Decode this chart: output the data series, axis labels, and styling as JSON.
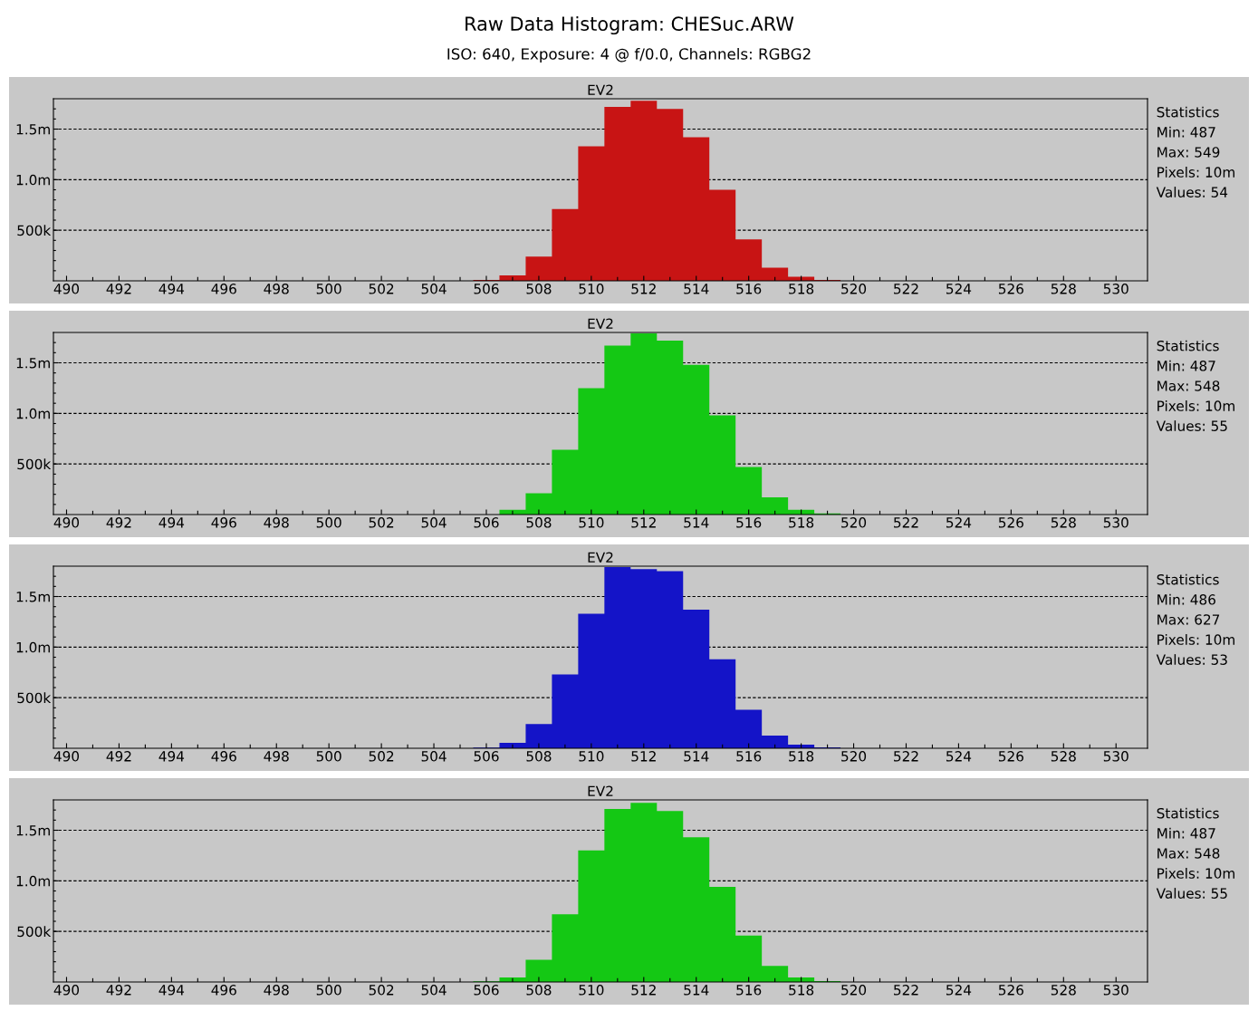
{
  "chart_data": [
    {
      "type": "other",
      "title": "Raw Data Histogram: CHESuc.ARW",
      "subtitle": "ISO: 640, Exposure: 4 @ f/0.0, Channels: RGBG2"
    },
    {
      "type": "histogram",
      "title": "EV2",
      "color": "#c81414",
      "bins": [
        505.5,
        506.5,
        507.5,
        508.5,
        509.5,
        510.5,
        511.5,
        512.5,
        513.5,
        514.5,
        515.5,
        516.5,
        517.5,
        518.5,
        519.5
      ],
      "values": [
        10000,
        54000,
        240000,
        710000,
        1330000,
        1720000,
        1780000,
        1700000,
        1420000,
        900000,
        410000,
        130000,
        40000,
        10000
      ],
      "xlim": [
        489.5,
        531.2
      ],
      "ylim": [
        0,
        1800000
      ],
      "xticks": [
        490,
        {
          "value": 491,
          "label": null
        },
        492,
        {
          "value": 493,
          "label": null
        },
        494,
        {
          "value": 495,
          "label": null
        },
        496,
        {
          "value": 497,
          "label": null
        },
        498,
        {
          "value": 499,
          "label": null
        },
        500,
        {
          "value": 501,
          "label": null
        },
        502,
        {
          "value": 503,
          "label": null
        },
        504,
        {
          "value": 505,
          "label": null
        },
        506,
        {
          "value": 507,
          "label": null
        },
        508,
        {
          "value": 509,
          "label": null
        },
        510,
        {
          "value": 511,
          "label": null
        },
        512,
        {
          "value": 513,
          "label": null
        },
        514,
        {
          "value": 515,
          "label": null
        },
        516,
        {
          "value": 517,
          "label": null
        },
        518,
        {
          "value": 519,
          "label": null
        },
        520,
        {
          "value": 521,
          "label": null
        },
        522,
        {
          "value": 523,
          "label": null
        },
        524,
        {
          "value": 525,
          "label": null
        },
        526,
        {
          "value": 527,
          "label": null
        },
        528,
        {
          "value": 529,
          "label": null
        },
        530
      ],
      "yticks": [
        {
          "value": 100000,
          "label": null
        },
        {
          "value": 200000,
          "label": null
        },
        {
          "value": 300000,
          "label": null
        },
        {
          "value": 400000,
          "label": null
        },
        {
          "value": 500000,
          "label": "500k"
        },
        {
          "value": 600000,
          "label": null
        },
        {
          "value": 700000,
          "label": null
        },
        {
          "value": 800000,
          "label": null
        },
        {
          "value": 900000,
          "label": null
        },
        {
          "value": 1000000,
          "label": "1.0m"
        },
        {
          "value": 1100000,
          "label": null
        },
        {
          "value": 1200000,
          "label": null
        },
        {
          "value": 1300000,
          "label": null
        },
        {
          "value": 1400000,
          "label": null
        },
        {
          "value": 1500000,
          "label": "1.5m"
        },
        {
          "value": 1600000,
          "label": null
        },
        {
          "value": 1700000,
          "label": null
        }
      ],
      "grid": "y",
      "line_style": "dashed",
      "annotations": [
        "Statistics",
        "Min: 487",
        "Max: 549",
        "Pixels: 10m",
        "Values: 54"
      ]
    },
    {
      "type": "histogram",
      "title": "EV2",
      "color": "#14c814",
      "bins": [
        506.5,
        507.5,
        508.5,
        509.5,
        510.5,
        511.5,
        512.5,
        513.5,
        514.5,
        515.5,
        516.5,
        517.5,
        518.5,
        519.5
      ],
      "values": [
        48000,
        210000,
        640000,
        1250000,
        1670000,
        1790000,
        1720000,
        1480000,
        980000,
        470000,
        170000,
        48000,
        12000
      ],
      "xlim": [
        489.5,
        531.2
      ],
      "ylim": [
        0,
        1800000
      ],
      "xticks": [
        490,
        {
          "value": 491,
          "label": null
        },
        492,
        {
          "value": 493,
          "label": null
        },
        494,
        {
          "value": 495,
          "label": null
        },
        496,
        {
          "value": 497,
          "label": null
        },
        498,
        {
          "value": 499,
          "label": null
        },
        500,
        {
          "value": 501,
          "label": null
        },
        502,
        {
          "value": 503,
          "label": null
        },
        504,
        {
          "value": 505,
          "label": null
        },
        506,
        {
          "value": 507,
          "label": null
        },
        508,
        {
          "value": 509,
          "label": null
        },
        510,
        {
          "value": 511,
          "label": null
        },
        512,
        {
          "value": 513,
          "label": null
        },
        514,
        {
          "value": 515,
          "label": null
        },
        516,
        {
          "value": 517,
          "label": null
        },
        518,
        {
          "value": 519,
          "label": null
        },
        520,
        {
          "value": 521,
          "label": null
        },
        522,
        {
          "value": 523,
          "label": null
        },
        524,
        {
          "value": 525,
          "label": null
        },
        526,
        {
          "value": 527,
          "label": null
        },
        528,
        {
          "value": 529,
          "label": null
        },
        530
      ],
      "yticks": [
        {
          "value": 100000,
          "label": null
        },
        {
          "value": 200000,
          "label": null
        },
        {
          "value": 300000,
          "label": null
        },
        {
          "value": 400000,
          "label": null
        },
        {
          "value": 500000,
          "label": "500k"
        },
        {
          "value": 600000,
          "label": null
        },
        {
          "value": 700000,
          "label": null
        },
        {
          "value": 800000,
          "label": null
        },
        {
          "value": 900000,
          "label": null
        },
        {
          "value": 1000000,
          "label": "1.0m"
        },
        {
          "value": 1100000,
          "label": null
        },
        {
          "value": 1200000,
          "label": null
        },
        {
          "value": 1300000,
          "label": null
        },
        {
          "value": 1400000,
          "label": null
        },
        {
          "value": 1500000,
          "label": "1.5m"
        },
        {
          "value": 1600000,
          "label": null
        },
        {
          "value": 1700000,
          "label": null
        }
      ],
      "grid": "y",
      "line_style": "dashed",
      "annotations": [
        "Statistics",
        "Min: 487",
        "Max: 548",
        "Pixels: 10m",
        "Values: 55"
      ]
    },
    {
      "type": "histogram",
      "title": "EV2",
      "color": "#1414c8",
      "bins": [
        505.5,
        506.5,
        507.5,
        508.5,
        509.5,
        510.5,
        511.5,
        512.5,
        513.5,
        514.5,
        515.5,
        516.5,
        517.5,
        518.5,
        519.5
      ],
      "values": [
        6000,
        54000,
        240000,
        730000,
        1330000,
        1790000,
        1770000,
        1750000,
        1370000,
        880000,
        380000,
        125000,
        36000,
        9000
      ],
      "xlim": [
        489.5,
        531.2
      ],
      "ylim": [
        0,
        1800000
      ],
      "xticks": [
        490,
        {
          "value": 491,
          "label": null
        },
        492,
        {
          "value": 493,
          "label": null
        },
        494,
        {
          "value": 495,
          "label": null
        },
        496,
        {
          "value": 497,
          "label": null
        },
        498,
        {
          "value": 499,
          "label": null
        },
        500,
        {
          "value": 501,
          "label": null
        },
        502,
        {
          "value": 503,
          "label": null
        },
        504,
        {
          "value": 505,
          "label": null
        },
        506,
        {
          "value": 507,
          "label": null
        },
        508,
        {
          "value": 509,
          "label": null
        },
        510,
        {
          "value": 511,
          "label": null
        },
        512,
        {
          "value": 513,
          "label": null
        },
        514,
        {
          "value": 515,
          "label": null
        },
        516,
        {
          "value": 517,
          "label": null
        },
        518,
        {
          "value": 519,
          "label": null
        },
        520,
        {
          "value": 521,
          "label": null
        },
        522,
        {
          "value": 523,
          "label": null
        },
        524,
        {
          "value": 525,
          "label": null
        },
        526,
        {
          "value": 527,
          "label": null
        },
        528,
        {
          "value": 529,
          "label": null
        },
        530
      ],
      "yticks": [
        {
          "value": 100000,
          "label": null
        },
        {
          "value": 200000,
          "label": null
        },
        {
          "value": 300000,
          "label": null
        },
        {
          "value": 400000,
          "label": null
        },
        {
          "value": 500000,
          "label": "500k"
        },
        {
          "value": 600000,
          "label": null
        },
        {
          "value": 700000,
          "label": null
        },
        {
          "value": 800000,
          "label": null
        },
        {
          "value": 900000,
          "label": null
        },
        {
          "value": 1000000,
          "label": "1.0m"
        },
        {
          "value": 1100000,
          "label": null
        },
        {
          "value": 1200000,
          "label": null
        },
        {
          "value": 1300000,
          "label": null
        },
        {
          "value": 1400000,
          "label": null
        },
        {
          "value": 1500000,
          "label": "1.5m"
        },
        {
          "value": 1600000,
          "label": null
        },
        {
          "value": 1700000,
          "label": null
        }
      ],
      "grid": "y",
      "line_style": "dashed",
      "annotations": [
        "Statistics",
        "Min: 486",
        "Max: 627",
        "Pixels: 10m",
        "Values: 53"
      ]
    },
    {
      "type": "histogram",
      "title": "EV2",
      "color": "#14c814",
      "bins": [
        505.5,
        506.5,
        507.5,
        508.5,
        509.5,
        510.5,
        511.5,
        512.5,
        513.5,
        514.5,
        515.5,
        516.5,
        517.5,
        518.5,
        519.5
      ],
      "values": [
        6000,
        45000,
        220000,
        670000,
        1300000,
        1710000,
        1770000,
        1690000,
        1430000,
        940000,
        460000,
        160000,
        45000,
        9000
      ],
      "xlim": [
        489.5,
        531.2
      ],
      "ylim": [
        0,
        1800000
      ],
      "xticks": [
        490,
        {
          "value": 491,
          "label": null
        },
        492,
        {
          "value": 493,
          "label": null
        },
        494,
        {
          "value": 495,
          "label": null
        },
        496,
        {
          "value": 497,
          "label": null
        },
        498,
        {
          "value": 499,
          "label": null
        },
        500,
        {
          "value": 501,
          "label": null
        },
        502,
        {
          "value": 503,
          "label": null
        },
        504,
        {
          "value": 505,
          "label": null
        },
        506,
        {
          "value": 507,
          "label": null
        },
        508,
        {
          "value": 509,
          "label": null
        },
        510,
        {
          "value": 511,
          "label": null
        },
        512,
        {
          "value": 513,
          "label": null
        },
        514,
        {
          "value": 515,
          "label": null
        },
        516,
        {
          "value": 517,
          "label": null
        },
        518,
        {
          "value": 519,
          "label": null
        },
        520,
        {
          "value": 521,
          "label": null
        },
        522,
        {
          "value": 523,
          "label": null
        },
        524,
        {
          "value": 525,
          "label": null
        },
        526,
        {
          "value": 527,
          "label": null
        },
        528,
        {
          "value": 529,
          "label": null
        },
        530
      ],
      "yticks": [
        {
          "value": 100000,
          "label": null
        },
        {
          "value": 200000,
          "label": null
        },
        {
          "value": 300000,
          "label": null
        },
        {
          "value": 400000,
          "label": null
        },
        {
          "value": 500000,
          "label": "500k"
        },
        {
          "value": 600000,
          "label": null
        },
        {
          "value": 700000,
          "label": null
        },
        {
          "value": 800000,
          "label": null
        },
        {
          "value": 900000,
          "label": null
        },
        {
          "value": 1000000,
          "label": "1.0m"
        },
        {
          "value": 1100000,
          "label": null
        },
        {
          "value": 1200000,
          "label": null
        },
        {
          "value": 1300000,
          "label": null
        },
        {
          "value": 1400000,
          "label": null
        },
        {
          "value": 1500000,
          "label": "1.5m"
        },
        {
          "value": 1600000,
          "label": null
        },
        {
          "value": 1700000,
          "label": null
        }
      ],
      "grid": "y",
      "line_style": "dashed",
      "annotations": [
        "Statistics",
        "Min: 487",
        "Max: 548",
        "Pixels: 10m",
        "Values: 55"
      ]
    }
  ]
}
